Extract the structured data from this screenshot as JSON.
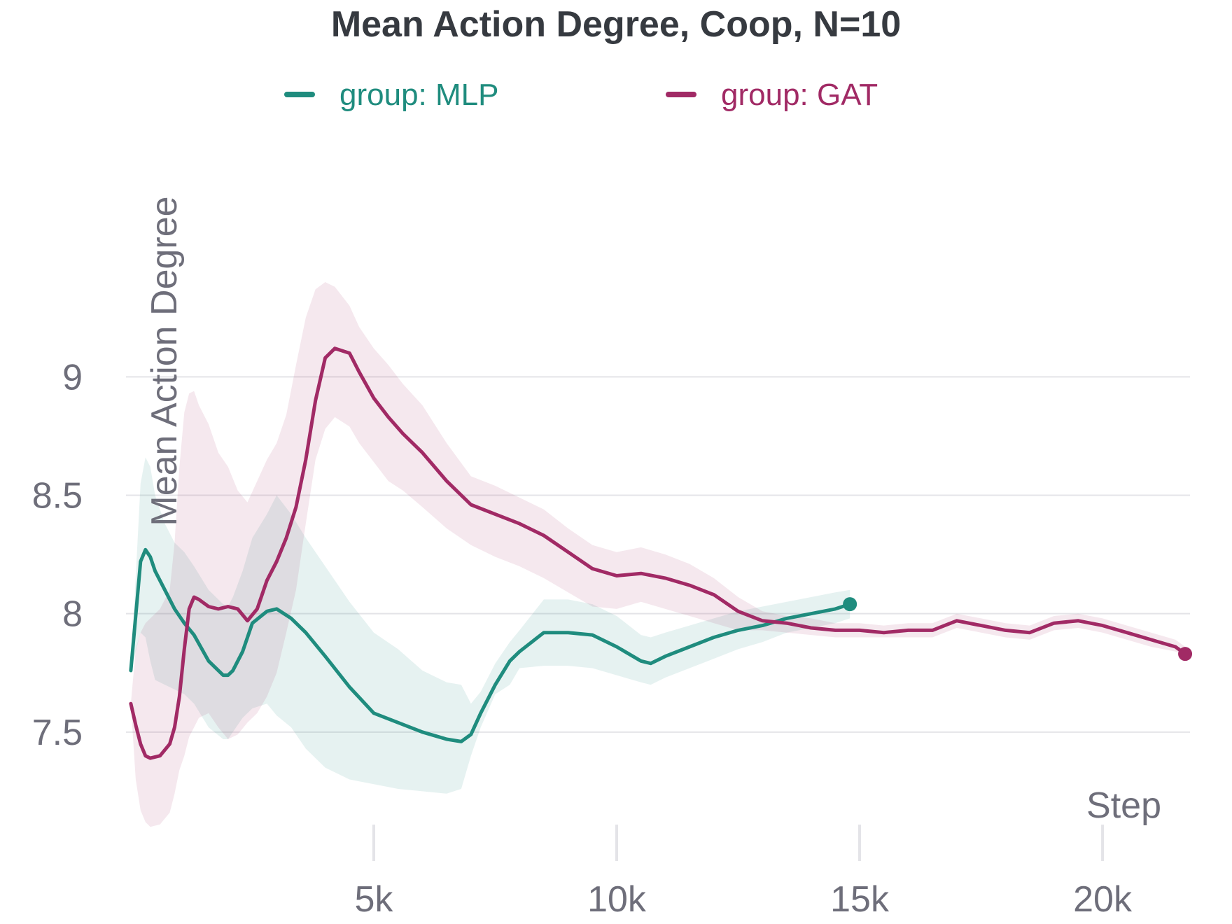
{
  "chart_data": {
    "type": "line",
    "title": "Mean Action Degree, Coop, N=10",
    "xlabel": "Step",
    "ylabel": "Mean Action Degree",
    "xlim": [
      -100,
      21800
    ],
    "ylim": [
      7.0,
      10.0
    ],
    "xticks": [
      5000,
      10000,
      15000,
      20000
    ],
    "xtick_labels": [
      "5k",
      "10k",
      "15k",
      "20k"
    ],
    "yticks": [
      7.5,
      8,
      8.5,
      9
    ],
    "ytick_labels": [
      "7.5",
      "8",
      "8.5",
      "9"
    ],
    "legend": "top",
    "grid": "horizontal",
    "series": [
      {
        "name": "group: MLP",
        "color": "#1f8c7e",
        "x": [
          0,
          200,
          300,
          400,
          500,
          700,
          900,
          1100,
          1300,
          1600,
          1900,
          2000,
          2100,
          2300,
          2500,
          2800,
          3000,
          3300,
          3600,
          4000,
          4500,
          5000,
          5500,
          6000,
          6500,
          6800,
          7000,
          7200,
          7500,
          7800,
          8000,
          8500,
          9000,
          9500,
          10000,
          10500,
          10700,
          11000,
          11500,
          12000,
          12500,
          13000,
          13500,
          14000,
          14500,
          14800
        ],
        "y": [
          7.76,
          8.22,
          8.27,
          8.24,
          8.18,
          8.1,
          8.02,
          7.96,
          7.91,
          7.8,
          7.74,
          7.74,
          7.76,
          7.84,
          7.96,
          8.01,
          8.02,
          7.98,
          7.92,
          7.82,
          7.69,
          7.58,
          7.54,
          7.5,
          7.47,
          7.46,
          7.49,
          7.58,
          7.7,
          7.8,
          7.84,
          7.92,
          7.92,
          7.91,
          7.86,
          7.8,
          7.79,
          7.82,
          7.86,
          7.9,
          7.93,
          7.95,
          7.98,
          8.0,
          8.02,
          8.04
        ],
        "lower": [
          7.76,
          7.92,
          7.9,
          7.8,
          7.72,
          7.7,
          7.68,
          7.66,
          7.62,
          7.52,
          7.47,
          7.47,
          7.5,
          7.56,
          7.6,
          7.62,
          7.57,
          7.52,
          7.43,
          7.35,
          7.3,
          7.28,
          7.26,
          7.25,
          7.24,
          7.26,
          7.4,
          7.52,
          7.66,
          7.7,
          7.77,
          7.78,
          7.78,
          7.77,
          7.74,
          7.71,
          7.7,
          7.73,
          7.77,
          7.81,
          7.85,
          7.88,
          7.92,
          7.94,
          7.96,
          7.98
        ],
        "upper": [
          7.76,
          8.55,
          8.66,
          8.62,
          8.5,
          8.38,
          8.3,
          8.26,
          8.2,
          8.1,
          8.04,
          8.03,
          8.07,
          8.18,
          8.32,
          8.42,
          8.5,
          8.42,
          8.32,
          8.2,
          8.05,
          7.92,
          7.85,
          7.76,
          7.71,
          7.7,
          7.62,
          7.67,
          7.79,
          7.88,
          7.93,
          8.06,
          8.06,
          8.04,
          7.99,
          7.91,
          7.9,
          7.92,
          7.95,
          7.98,
          8.01,
          8.03,
          8.05,
          8.07,
          8.09,
          8.1
        ]
      },
      {
        "name": "group: GAT",
        "color": "#a12a65",
        "x": [
          0,
          100,
          200,
          300,
          400,
          600,
          800,
          900,
          1000,
          1100,
          1200,
          1300,
          1400,
          1600,
          1800,
          2000,
          2200,
          2400,
          2600,
          2800,
          3000,
          3200,
          3400,
          3600,
          3800,
          4000,
          4200,
          4500,
          4700,
          5000,
          5300,
          5600,
          6000,
          6500,
          7000,
          7500,
          8000,
          8500,
          9000,
          9500,
          10000,
          10500,
          11000,
          11500,
          12000,
          12500,
          13000,
          13500,
          14000,
          14500,
          15000,
          15500,
          16000,
          16500,
          17000,
          17500,
          18000,
          18500,
          19000,
          19500,
          20000,
          20500,
          21000,
          21500,
          21700
        ],
        "y": [
          7.62,
          7.53,
          7.45,
          7.4,
          7.39,
          7.4,
          7.45,
          7.52,
          7.65,
          7.85,
          8.02,
          8.07,
          8.06,
          8.03,
          8.02,
          8.03,
          8.02,
          7.97,
          8.02,
          8.14,
          8.22,
          8.32,
          8.45,
          8.65,
          8.9,
          9.08,
          9.12,
          9.1,
          9.02,
          8.91,
          8.83,
          8.76,
          8.68,
          8.56,
          8.46,
          8.42,
          8.38,
          8.33,
          8.26,
          8.19,
          8.16,
          8.17,
          8.15,
          8.12,
          8.08,
          8.01,
          7.97,
          7.96,
          7.94,
          7.93,
          7.93,
          7.92,
          7.93,
          7.93,
          7.97,
          7.95,
          7.93,
          7.92,
          7.96,
          7.97,
          7.95,
          7.92,
          7.89,
          7.86,
          7.83
        ],
        "lower": [
          7.62,
          7.3,
          7.17,
          7.12,
          7.1,
          7.11,
          7.16,
          7.24,
          7.34,
          7.4,
          7.48,
          7.52,
          7.56,
          7.58,
          7.52,
          7.47,
          7.49,
          7.54,
          7.58,
          7.65,
          7.75,
          7.92,
          8.1,
          8.38,
          8.65,
          8.78,
          8.83,
          8.79,
          8.72,
          8.64,
          8.56,
          8.52,
          8.45,
          8.36,
          8.29,
          8.24,
          8.2,
          8.15,
          8.09,
          8.03,
          8.02,
          8.05,
          8.02,
          7.99,
          7.96,
          7.93,
          7.93,
          7.92,
          7.91,
          7.9,
          7.9,
          7.9,
          7.9,
          7.9,
          7.94,
          7.92,
          7.9,
          7.89,
          7.93,
          7.94,
          7.92,
          7.89,
          7.86,
          7.84,
          7.82
        ],
        "upper": [
          7.62,
          7.85,
          7.92,
          7.96,
          7.98,
          8.02,
          8.1,
          8.3,
          8.62,
          8.85,
          8.93,
          8.94,
          8.88,
          8.8,
          8.68,
          8.62,
          8.52,
          8.47,
          8.56,
          8.65,
          8.72,
          8.84,
          9.05,
          9.25,
          9.37,
          9.4,
          9.38,
          9.3,
          9.21,
          9.12,
          9.05,
          8.97,
          8.88,
          8.72,
          8.58,
          8.54,
          8.49,
          8.44,
          8.36,
          8.29,
          8.26,
          8.28,
          8.25,
          8.21,
          8.15,
          8.07,
          8.01,
          7.99,
          7.98,
          7.96,
          7.96,
          7.95,
          7.96,
          7.96,
          8.0,
          7.98,
          7.96,
          7.95,
          7.99,
          8.0,
          7.98,
          7.95,
          7.92,
          7.89,
          7.86
        ]
      }
    ]
  }
}
